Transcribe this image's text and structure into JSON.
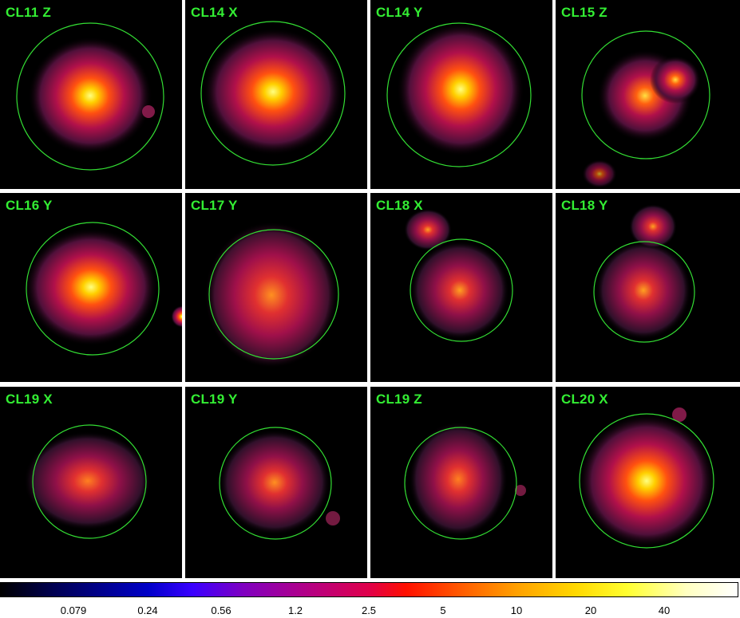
{
  "panels": [
    {
      "label": "CL11 Z"
    },
    {
      "label": "CL14 X"
    },
    {
      "label": "CL14 Y"
    },
    {
      "label": "CL15 Z"
    },
    {
      "label": "CL16 Y"
    },
    {
      "label": "CL17 Y"
    },
    {
      "label": "CL18 X"
    },
    {
      "label": "CL18 Y"
    },
    {
      "label": "CL19 X"
    },
    {
      "label": "CL19 Y"
    },
    {
      "label": "CL19 Z"
    },
    {
      "label": "CL20 X"
    }
  ],
  "colorbar": {
    "ticks": [
      "0.079",
      "0.24",
      "0.56",
      "1.2",
      "2.5",
      "5",
      "10",
      "20",
      "40"
    ]
  },
  "colors": {
    "label": "#33ee33",
    "circle": "#33dd33",
    "background": "#000000"
  }
}
